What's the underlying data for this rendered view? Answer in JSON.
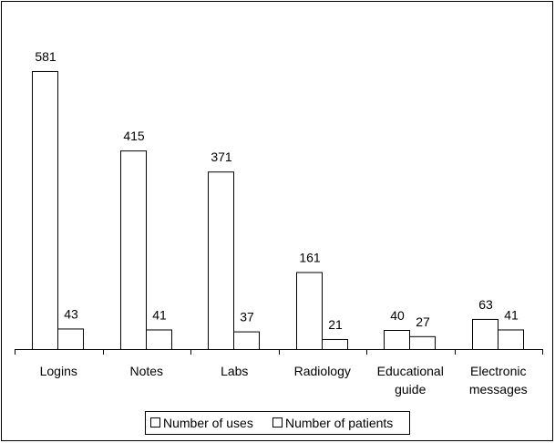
{
  "chart_data": {
    "type": "bar",
    "categories": [
      "Logins",
      "Notes",
      "Labs",
      "Radiology",
      "Educational guide",
      "Electronic messages"
    ],
    "series": [
      {
        "name": "Number of uses",
        "color": "#ffffff",
        "values": [
          581,
          415,
          371,
          161,
          40,
          63
        ]
      },
      {
        "name": "Number of patients",
        "color": "#ffffff",
        "values": [
          43,
          41,
          37,
          21,
          27,
          41
        ]
      }
    ]
  }
}
